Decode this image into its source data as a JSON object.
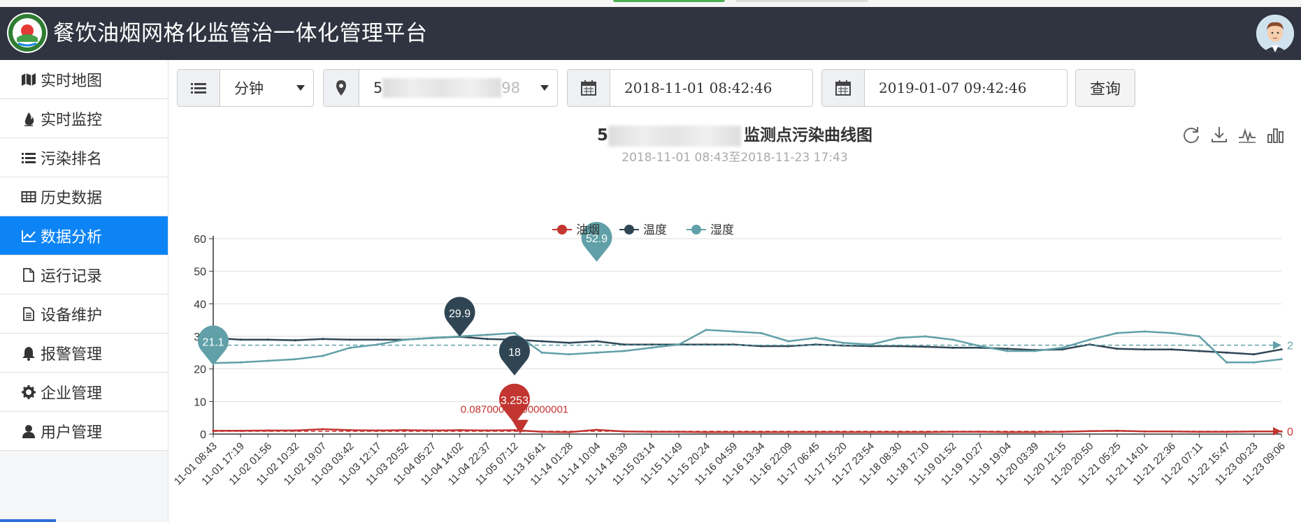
{
  "app": {
    "title": "餐饮油烟网格化监管治一体化管理平台"
  },
  "sidebar": {
    "items": [
      {
        "label": "实时地图",
        "icon": "map-icon"
      },
      {
        "label": "实时监控",
        "icon": "fire-icon"
      },
      {
        "label": "污染排名",
        "icon": "list-icon"
      },
      {
        "label": "历史数据",
        "icon": "table-icon"
      },
      {
        "label": "数据分析",
        "icon": "line-chart-icon",
        "active": true
      },
      {
        "label": "运行记录",
        "icon": "file-icon"
      },
      {
        "label": "设备维护",
        "icon": "file-text-icon"
      },
      {
        "label": "报警管理",
        "icon": "bell-icon"
      },
      {
        "label": "企业管理",
        "icon": "gear-icon"
      },
      {
        "label": "用户管理",
        "icon": "user-icon"
      }
    ]
  },
  "toolbar": {
    "interval_value": "分钟",
    "site_value_prefix": "5",
    "site_value_suffix": "98",
    "start_time": "2018-11-01 08:42:46",
    "end_time": "2019-01-07 09:42:46",
    "query_label": "查询"
  },
  "colors": {
    "header_bg": "#2f3440",
    "accent": "#0d84f5",
    "oil": "#c23531",
    "temp": "#2f4554",
    "humid": "#61a0a8"
  },
  "chart_data": {
    "type": "line",
    "title_prefix": "5",
    "title": "监测点污染曲线图",
    "subtitle": "2018-11-01 08:43至2018-11-23 17:43",
    "legend": [
      "油烟",
      "温度",
      "湿度"
    ],
    "legend_position": "top-center",
    "grid": true,
    "ylim": [
      0,
      60
    ],
    "yticks": [
      0,
      10,
      20,
      30,
      40,
      50,
      60
    ],
    "xticks": [
      "11-01 08:43",
      "11-01 17:19",
      "11-02 01:56",
      "11-02 10:32",
      "11-02 19:07",
      "11-03 03:42",
      "11-03 12:17",
      "11-03 20:52",
      "11-04 05:27",
      "11-04 14:02",
      "11-04 22:37",
      "11-05 07:12",
      "11-13 16:41",
      "11-14 01:28",
      "11-14 10:04",
      "11-14 18:39",
      "11-15 03:14",
      "11-15 11:49",
      "11-15 20:24",
      "11-16 04:59",
      "11-16 13:34",
      "11-16 22:09",
      "11-17 06:45",
      "11-17 15:20",
      "11-17 23:54",
      "11-18 08:30",
      "11-18 17:10",
      "11-19 01:52",
      "11-19 10:27",
      "11-19 19:04",
      "11-20 03:39",
      "11-20 12:15",
      "11-20 20:50",
      "11-21 05:25",
      "11-21 14:01",
      "11-21 22:36",
      "11-22 07:11",
      "11-22 15:47",
      "11-23 00:23",
      "11-23 09:06"
    ],
    "series": [
      {
        "name": "油烟",
        "color": "#c23531",
        "values": [
          1.0,
          1.0,
          1.1,
          1.1,
          1.5,
          1.2,
          1.1,
          1.2,
          1.1,
          1.2,
          1.1,
          1.2,
          0.7,
          0.6,
          1.3,
          0.8,
          0.7,
          0.7,
          0.6,
          0.6,
          0.6,
          0.6,
          0.6,
          0.6,
          0.6,
          0.6,
          0.6,
          0.7,
          0.7,
          0.6,
          0.6,
          0.7,
          0.9,
          1.0,
          0.8,
          0.8,
          0.7,
          0.7,
          0.8,
          0.8
        ],
        "max_marker": "3.253",
        "min_marker": "0.08700000000000001",
        "avg_marker": "0"
      },
      {
        "name": "温度",
        "color": "#2f4554",
        "values": [
          29.5,
          29.0,
          29.0,
          28.8,
          29.2,
          29.0,
          29.0,
          29.0,
          29.5,
          29.9,
          29.2,
          29.0,
          28.5,
          28.0,
          28.5,
          27.5,
          27.5,
          27.5,
          27.5,
          27.5,
          27.0,
          27.0,
          27.5,
          27.2,
          27.0,
          27.0,
          26.8,
          26.5,
          26.5,
          26.2,
          25.8,
          26.0,
          27.5,
          26.2,
          26.0,
          26.0,
          25.5,
          25.0,
          24.5,
          26.0
        ],
        "max_marker": "29.9",
        "min_marker": "18"
      },
      {
        "name": "湿度",
        "color": "#61a0a8",
        "values": [
          21.8,
          22.0,
          22.5,
          23.0,
          24.0,
          26.5,
          27.5,
          29.0,
          29.5,
          30.0,
          30.5,
          31.0,
          25.0,
          24.5,
          25.0,
          25.5,
          26.5,
          27.5,
          32.0,
          31.5,
          31.0,
          28.5,
          29.5,
          28.0,
          27.5,
          29.5,
          30.0,
          29.0,
          27.0,
          25.5,
          25.5,
          26.5,
          29.0,
          31.0,
          31.5,
          31.0,
          30.0,
          22.0,
          22.0,
          23.0
        ],
        "max_marker": "52.9",
        "min_marker": "21.1",
        "avg_marker": "2"
      }
    ]
  }
}
